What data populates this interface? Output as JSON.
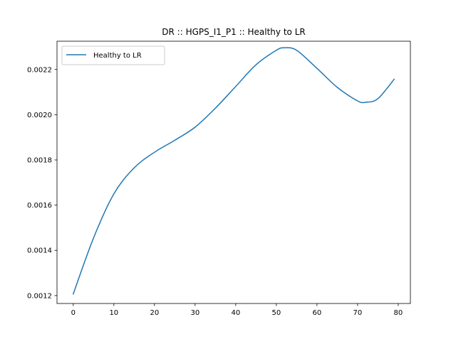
{
  "chart_data": {
    "type": "line",
    "title": "DR :: HGPS_I1_P1 ::  Healthy to LR",
    "xlabel": "",
    "ylabel": "",
    "xlim": [
      -4,
      83
    ],
    "ylim": [
      0.001165,
      0.002325
    ],
    "xticks": [
      0,
      10,
      20,
      30,
      40,
      50,
      60,
      70,
      80
    ],
    "xtick_labels": [
      "0",
      "10",
      "20",
      "30",
      "40",
      "50",
      "60",
      "70",
      "80"
    ],
    "yticks": [
      0.0012,
      0.0014,
      0.0016,
      0.0018,
      0.002,
      0.0022
    ],
    "ytick_labels": [
      "0.0012",
      "0.0014",
      "0.0016",
      "0.0018",
      "0.0020",
      "0.0022"
    ],
    "grid": false,
    "legend_position": "upper left",
    "series": [
      {
        "name": "Healthy to LR",
        "color": "#1f77b4",
        "x": [
          0,
          5,
          10,
          15,
          20,
          25,
          30,
          35,
          40,
          45,
          50,
          52,
          55,
          60,
          65,
          70,
          72,
          75,
          79
        ],
        "y": [
          0.001207,
          0.001455,
          0.00165,
          0.001765,
          0.001834,
          0.001887,
          0.001945,
          0.002029,
          0.002125,
          0.002221,
          0.002285,
          0.002296,
          0.002285,
          0.002205,
          0.002121,
          0.002061,
          0.002055,
          0.002071,
          0.002157
        ]
      }
    ]
  }
}
